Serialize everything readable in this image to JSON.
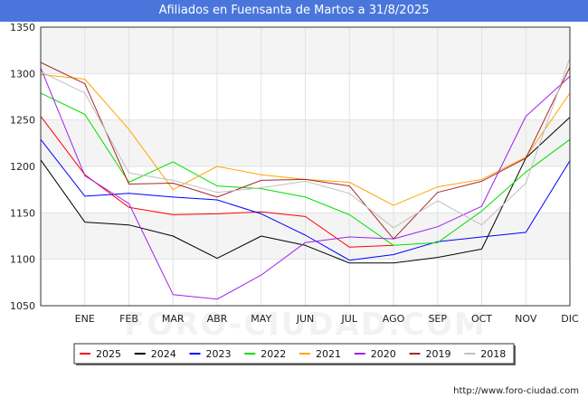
{
  "title": "Afiliados en Fuensanta de Martos a 31/8/2025",
  "source": "http://www.foro-ciudad.com",
  "watermark": "FORO-CIUDAD.COM",
  "chart_data": {
    "type": "line",
    "title": "Afiliados en Fuensanta de Martos a 31/8/2025",
    "xlabel": "",
    "ylabel": "",
    "categories": [
      "",
      "ENE",
      "FEB",
      "MAR",
      "ABR",
      "MAY",
      "JUN",
      "JUL",
      "AGO",
      "SEP",
      "OCT",
      "NOV",
      "DIC"
    ],
    "ylim": [
      1050,
      1350
    ],
    "yticks": [
      1050,
      1100,
      1150,
      1200,
      1250,
      1300,
      1350
    ],
    "grid": true,
    "legend_position": "bottom",
    "series": [
      {
        "name": "2025",
        "color": "#ff0000",
        "values": [
          1254,
          1191,
          1156,
          1148,
          1149,
          1151,
          1146,
          1113,
          1115,
          null,
          null,
          null,
          null
        ]
      },
      {
        "name": "2024",
        "color": "#000000",
        "values": [
          1207,
          1140,
          1137,
          1125,
          1101,
          1125,
          1115,
          1096,
          1096,
          1102,
          1111,
          1209,
          1253
        ]
      },
      {
        "name": "2023",
        "color": "#0000ff",
        "values": [
          1229,
          1168,
          1171,
          1167,
          1164,
          1149,
          1126,
          1099,
          1105,
          1119,
          1124,
          1129,
          1206
        ]
      },
      {
        "name": "2022",
        "color": "#00e000",
        "values": [
          1279,
          1256,
          1183,
          1205,
          1179,
          1176,
          1167,
          1148,
          1115,
          1118,
          1152,
          1194,
          1229
        ]
      },
      {
        "name": "2021",
        "color": "#ffa500",
        "values": [
          1299,
          1294,
          1240,
          1175,
          1200,
          1191,
          1186,
          1183,
          1158,
          1178,
          1186,
          1210,
          1279
        ]
      },
      {
        "name": "2020",
        "color": "#a020f0",
        "values": [
          1306,
          1190,
          1160,
          1062,
          1057,
          1083,
          1118,
          1124,
          1122,
          1135,
          1157,
          1254,
          1297
        ]
      },
      {
        "name": "2019",
        "color": "#a52a2a",
        "values": [
          1312,
          1289,
          1181,
          1182,
          1167,
          1185,
          1186,
          1179,
          1122,
          1172,
          1184,
          1209,
          1307
        ]
      },
      {
        "name": "2018",
        "color": "#c0c0c0",
        "values": [
          1302,
          1279,
          1193,
          1185,
          1172,
          1177,
          1184,
          1171,
          1134,
          1163,
          1137,
          1182,
          1317
        ]
      }
    ]
  }
}
